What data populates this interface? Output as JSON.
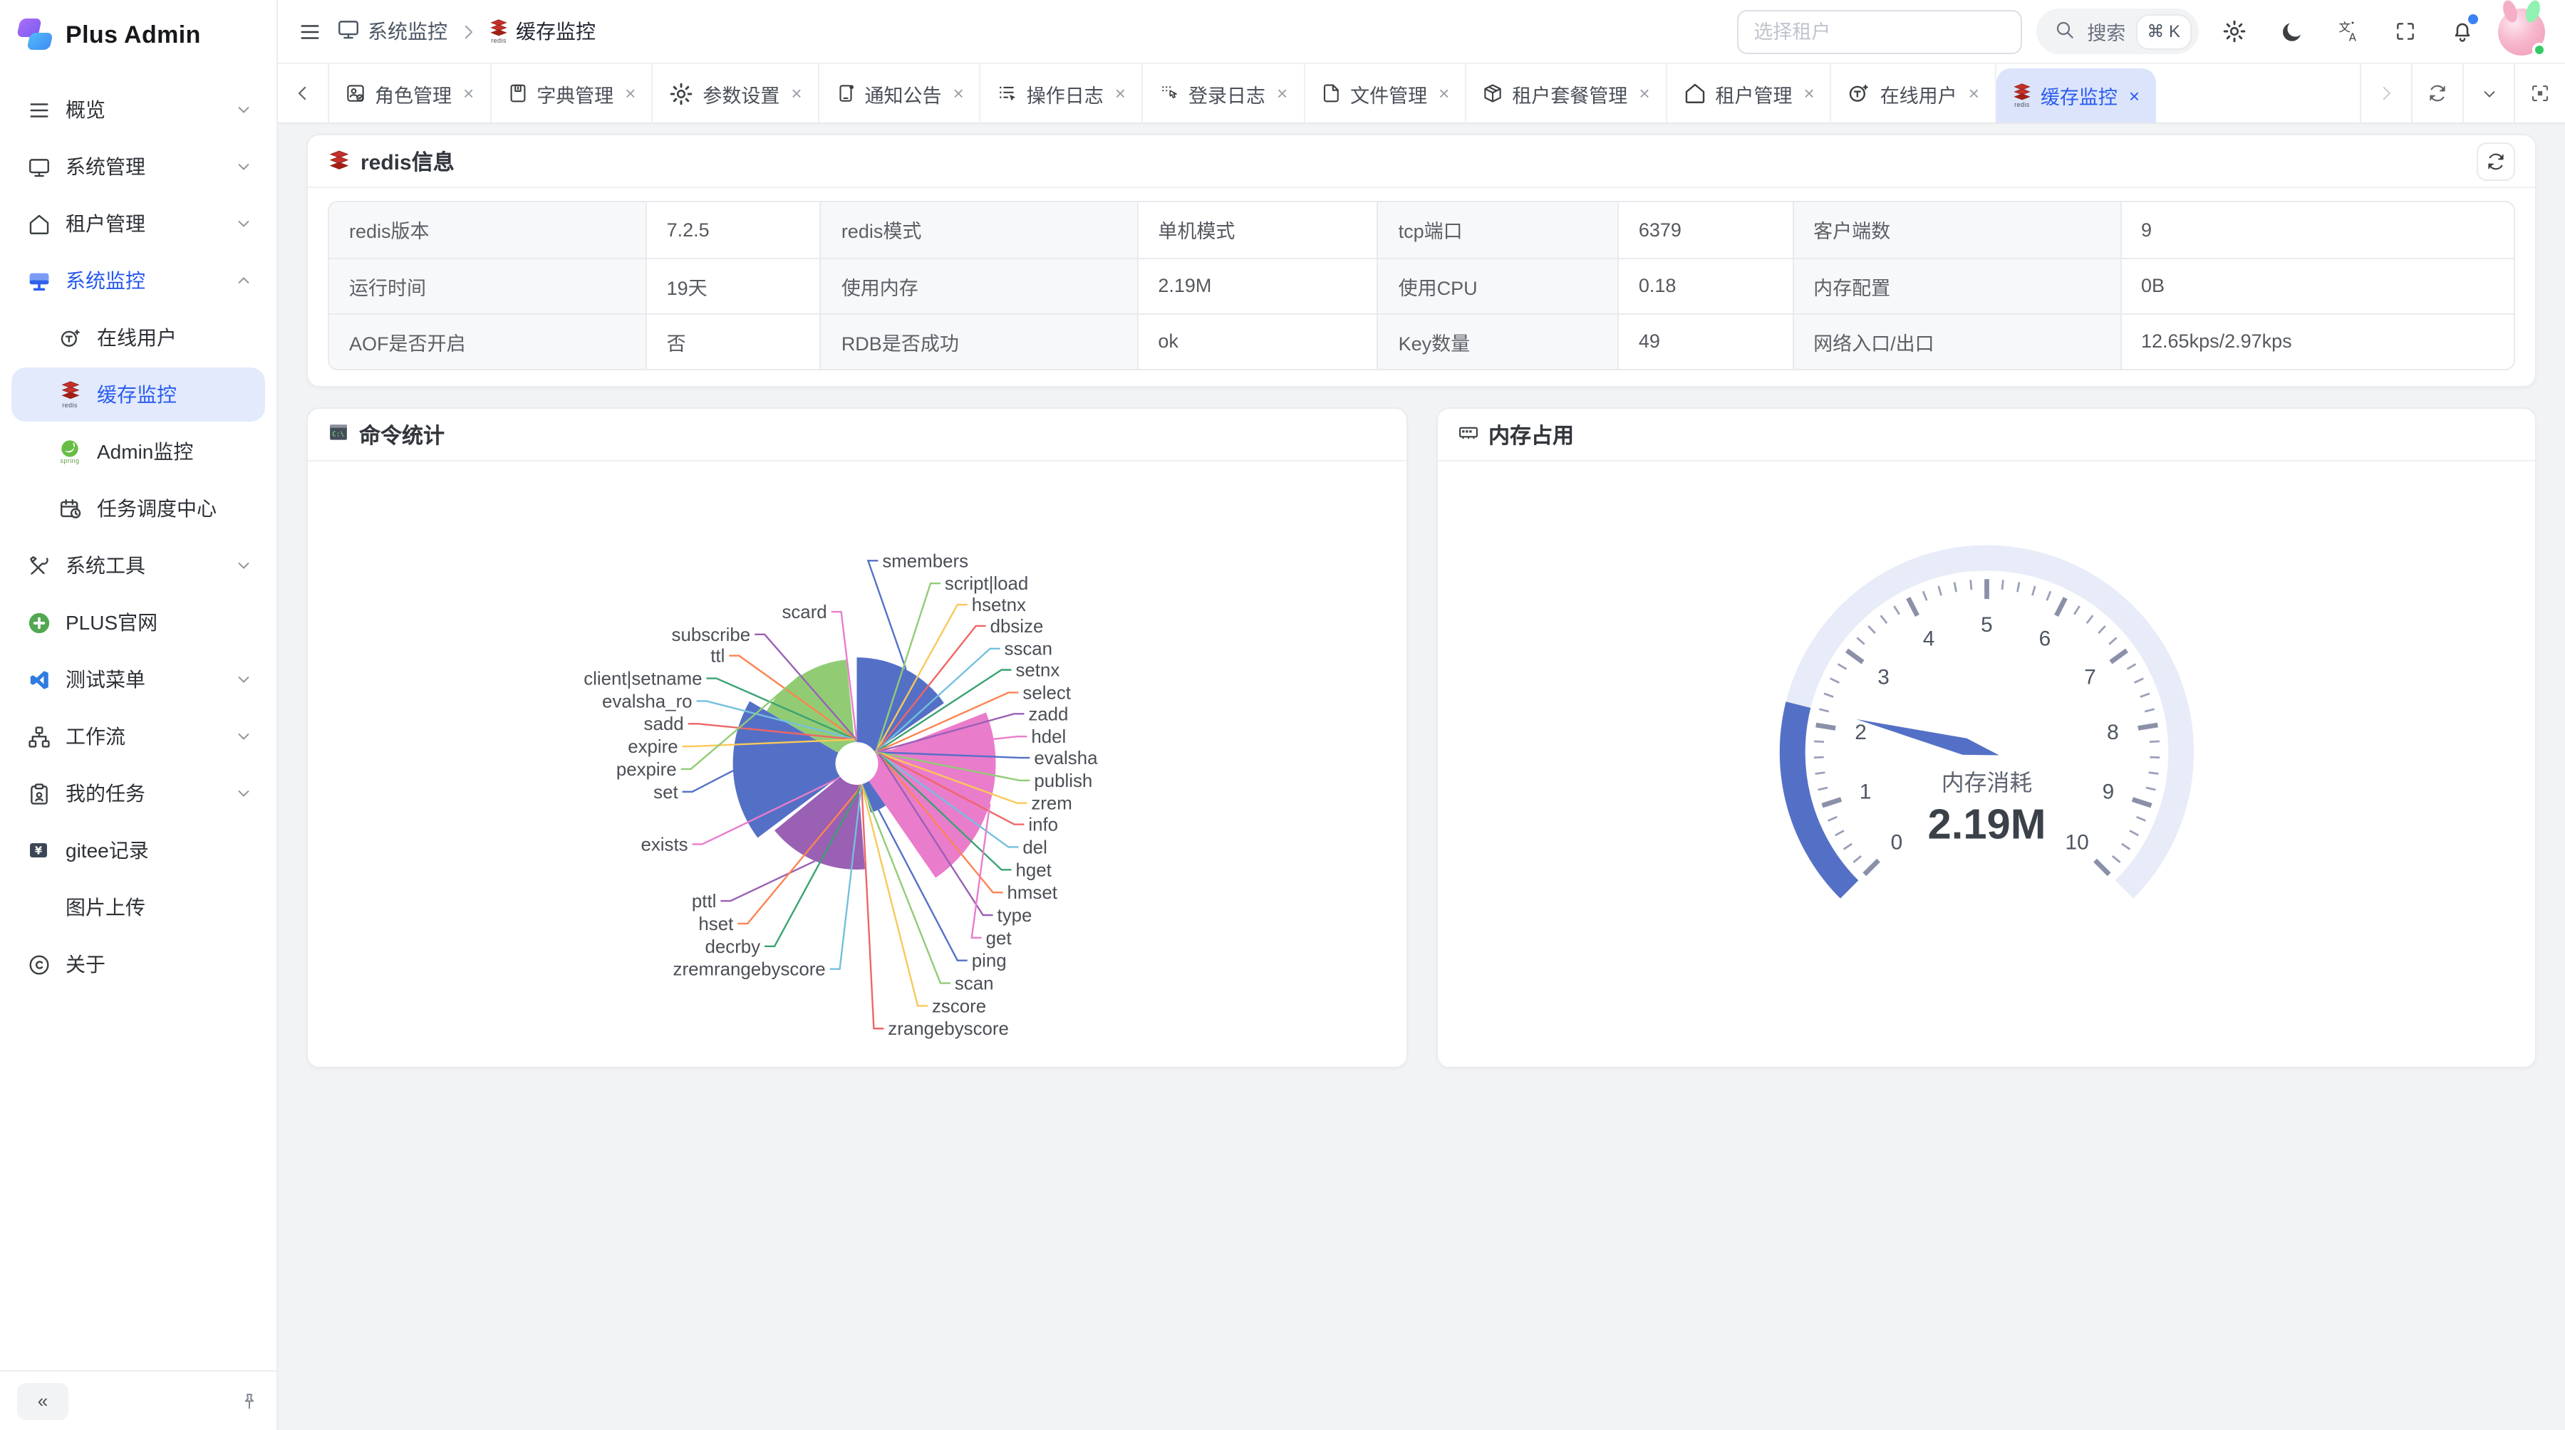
{
  "brand": {
    "name": "Plus Admin"
  },
  "header": {
    "breadcrumb": [
      {
        "label": "系统监控",
        "icon": "monitor-icon"
      },
      {
        "label": "缓存监控",
        "icon": "redis-icon"
      }
    ],
    "tenant_placeholder": "选择租户",
    "search_label": "搜索",
    "search_shortcut": "⌘ K"
  },
  "sidebar": {
    "collapse_label": "«",
    "items": [
      {
        "label": "概览",
        "icon": "menu",
        "chevron": "down"
      },
      {
        "label": "系统管理",
        "icon": "monitor",
        "chevron": "down"
      },
      {
        "label": "租户管理",
        "icon": "home",
        "chevron": "down"
      },
      {
        "label": "系统监控",
        "icon": "monitor-active",
        "chevron": "up",
        "active": true
      },
      {
        "label": "在线用户",
        "icon": "online",
        "child": true
      },
      {
        "label": "缓存监控",
        "icon": "redis",
        "child": true,
        "selected": true
      },
      {
        "label": "Admin监控",
        "icon": "spring",
        "child": true
      },
      {
        "label": "任务调度中心",
        "icon": "schedule",
        "child": true
      },
      {
        "label": "系统工具",
        "icon": "tools",
        "chevron": "down"
      },
      {
        "label": "PLUS官网",
        "icon": "plus"
      },
      {
        "label": "测试菜单",
        "icon": "vscode",
        "chevron": "down"
      },
      {
        "label": "工作流",
        "icon": "workflow",
        "chevron": "down"
      },
      {
        "label": "我的任务",
        "icon": "tasks",
        "chevron": "down"
      },
      {
        "label": "gitee记录",
        "icon": "gitee"
      },
      {
        "label": "图片上传",
        "icon": "none"
      },
      {
        "label": "关于",
        "icon": "copyright"
      }
    ]
  },
  "tabs": [
    {
      "label": "角色管理",
      "icon": "role"
    },
    {
      "label": "字典管理",
      "icon": "dict"
    },
    {
      "label": "参数设置",
      "icon": "gear"
    },
    {
      "label": "通知公告",
      "icon": "notice"
    },
    {
      "label": "操作日志",
      "icon": "oplog"
    },
    {
      "label": "登录日志",
      "icon": "loginlog"
    },
    {
      "label": "文件管理",
      "icon": "file"
    },
    {
      "label": "租户套餐管理",
      "icon": "package"
    },
    {
      "label": "租户管理",
      "icon": "home"
    },
    {
      "label": "在线用户",
      "icon": "online"
    },
    {
      "label": "缓存监控",
      "icon": "redis",
      "active": true
    }
  ],
  "redis_panel": {
    "title": "redis信息",
    "rows": [
      [
        {
          "label": "redis版本",
          "value": "7.2.5"
        },
        {
          "label": "redis模式",
          "value": "单机模式"
        },
        {
          "label": "tcp端口",
          "value": "6379"
        },
        {
          "label": "客户端数",
          "value": "9"
        }
      ],
      [
        {
          "label": "运行时间",
          "value": "19天"
        },
        {
          "label": "使用内存",
          "value": "2.19M"
        },
        {
          "label": "使用CPU",
          "value": "0.18"
        },
        {
          "label": "内存配置",
          "value": "0B"
        }
      ],
      [
        {
          "label": "AOF是否开启",
          "value": "否"
        },
        {
          "label": "RDB是否成功",
          "value": "ok"
        },
        {
          "label": "Key数量",
          "value": "49"
        },
        {
          "label": "网络入口/出口",
          "value": "12.65kps/2.97kps"
        }
      ]
    ]
  },
  "chart_data": [
    {
      "type": "pie",
      "variant": "nightingale-rose",
      "title": "命令统计",
      "legend": false,
      "palette": [
        "#5470c6",
        "#91cc75",
        "#fac858",
        "#ee6666",
        "#73c0de",
        "#3ba272",
        "#fc8452",
        "#9a60b4",
        "#ea7ccc"
      ],
      "series": [
        {
          "name": "smembers",
          "value": 470
        },
        {
          "name": "script|load",
          "value": 7
        },
        {
          "name": "hsetnx",
          "value": 6
        },
        {
          "name": "dbsize",
          "value": 8
        },
        {
          "name": "sscan",
          "value": 7
        },
        {
          "name": "setnx",
          "value": 6
        },
        {
          "name": "select",
          "value": 8
        },
        {
          "name": "zadd",
          "value": 7
        },
        {
          "name": "hdel",
          "value": 6
        },
        {
          "name": "evalsha",
          "value": 8
        },
        {
          "name": "publish",
          "value": 7
        },
        {
          "name": "zrem",
          "value": 6
        },
        {
          "name": "info",
          "value": 8
        },
        {
          "name": "del",
          "value": 7
        },
        {
          "name": "hget",
          "value": 6
        },
        {
          "name": "hmset",
          "value": 8
        },
        {
          "name": "type",
          "value": 7
        },
        {
          "name": "get",
          "value": 655
        },
        {
          "name": "ping",
          "value": 160
        },
        {
          "name": "scan",
          "value": 16
        },
        {
          "name": "zscore",
          "value": 15
        },
        {
          "name": "zrangebyscore",
          "value": 17
        },
        {
          "name": "zremrangebyscore",
          "value": 16
        },
        {
          "name": "decrby",
          "value": 15
        },
        {
          "name": "hset",
          "value": 17
        },
        {
          "name": "pttl",
          "value": 470
        },
        {
          "name": "exists",
          "value": 20
        },
        {
          "name": "set",
          "value": 570
        },
        {
          "name": "pexpire",
          "value": 460
        },
        {
          "name": "expire",
          "value": 7
        },
        {
          "name": "sadd",
          "value": 7
        },
        {
          "name": "evalsha_ro",
          "value": 7
        },
        {
          "name": "client|setname",
          "value": 7
        },
        {
          "name": "ttl",
          "value": 7
        },
        {
          "name": "subscribe",
          "value": 7
        },
        {
          "name": "scard",
          "value": 7
        }
      ]
    },
    {
      "type": "gauge",
      "title": "内存占用",
      "name": "内存消耗",
      "value": 2.19,
      "value_display": "2.19M",
      "min": 0,
      "max": 10,
      "tick_labels": [
        "0",
        "1",
        "2",
        "3",
        "4",
        "5",
        "6",
        "7",
        "8",
        "9",
        "10"
      ],
      "start_angle": 225,
      "end_angle": -45,
      "track_color": "#e8ecf8",
      "progress_color": "#5470c6",
      "needle_color": "#5470c6",
      "tick_color": "#8a90a8"
    }
  ]
}
